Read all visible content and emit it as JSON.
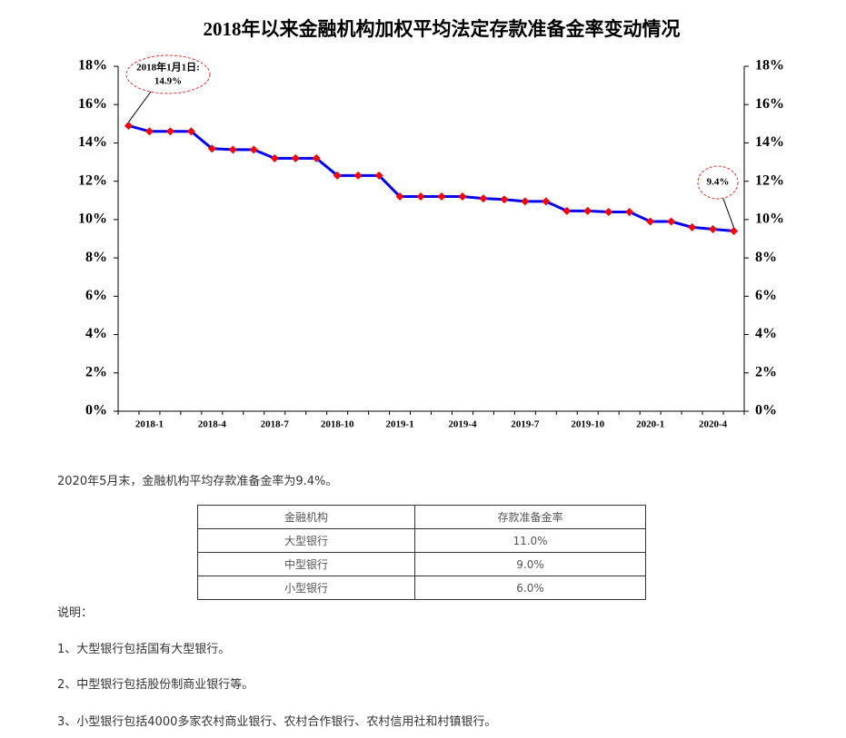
{
  "chart_data": {
    "type": "line",
    "title": "2018年以来金融机构加权平均法定存款准备金率变动情况",
    "categories": [
      null,
      "2018-1",
      null,
      null,
      "2018-4",
      null,
      null,
      "2018-7",
      null,
      null,
      "2018-10",
      null,
      null,
      "2019-1",
      null,
      null,
      "2019-4",
      null,
      null,
      "2019-7",
      null,
      null,
      "2019-10",
      null,
      null,
      "2020-1",
      null,
      null,
      "2020-4",
      null
    ],
    "values": [
      14.9,
      14.6,
      14.6,
      14.6,
      13.7,
      13.65,
      13.65,
      13.2,
      13.2,
      13.2,
      12.3,
      12.3,
      12.3,
      11.2,
      11.2,
      11.2,
      11.2,
      11.1,
      11.05,
      10.95,
      10.95,
      10.45,
      10.45,
      10.4,
      10.4,
      9.9,
      9.9,
      9.6,
      9.5,
      9.4
    ],
    "color": "#0000ff",
    "marker_color": "#ff0000",
    "ylim": [
      0,
      18
    ],
    "yticks": [
      {
        "value": 0,
        "label": "0%"
      },
      {
        "value": 2,
        "label": "2%"
      },
      {
        "value": 4,
        "label": "4%"
      },
      {
        "value": 6,
        "label": "6%"
      },
      {
        "value": 8,
        "label": "8%"
      },
      {
        "value": 10,
        "label": "10%"
      },
      {
        "value": 12,
        "label": "12%"
      },
      {
        "value": 14,
        "label": "14%"
      },
      {
        "value": 16,
        "label": "16%"
      },
      {
        "value": 18,
        "label": "18%"
      }
    ],
    "y2lim": [
      0,
      18
    ],
    "y2ticks": [
      {
        "value": 0,
        "label": "0%"
      },
      {
        "value": 2,
        "label": "2%"
      },
      {
        "value": 4,
        "label": "4%"
      },
      {
        "value": 6,
        "label": "6%"
      },
      {
        "value": 8,
        "label": "8%"
      },
      {
        "value": 10,
        "label": "10%"
      },
      {
        "value": 12,
        "label": "12%"
      },
      {
        "value": 14,
        "label": "14%"
      },
      {
        "value": 16,
        "label": "16%"
      },
      {
        "value": 18,
        "label": "18%"
      }
    ],
    "annotations": [
      {
        "lines": [
          "2018年1月1日:",
          "14.9%"
        ]
      },
      {
        "lines": [
          "9.4%"
        ]
      }
    ]
  },
  "summary": "2020年5月末，金融机构平均存款准备金率为9.4%。",
  "table": {
    "header": [
      "金融机构",
      "存款准备金率"
    ],
    "rows": [
      [
        "大型银行",
        "11.0%"
      ],
      [
        "中型银行",
        "9.0%"
      ],
      [
        "小型银行",
        "6.0%"
      ]
    ]
  },
  "notes": {
    "title": "说明：",
    "items": [
      "1、大型银行包括国有大型银行。",
      "2、中型银行包括股份制商业银行等。",
      "3、小型银行包括4000多家农村商业银行、农村合作银行、农村信用社和村镇银行。"
    ]
  }
}
